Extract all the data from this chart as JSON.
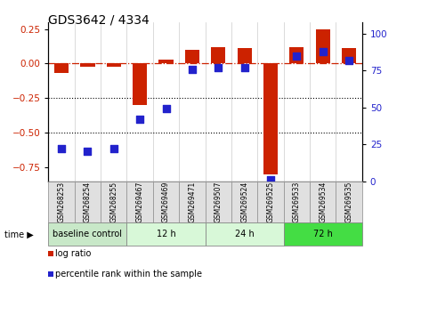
{
  "title": "GDS3642 / 4334",
  "samples": [
    "GSM268253",
    "GSM268254",
    "GSM268255",
    "GSM269467",
    "GSM269469",
    "GSM269471",
    "GSM269507",
    "GSM269524",
    "GSM269525",
    "GSM269533",
    "GSM269534",
    "GSM269535"
  ],
  "log_ratio": [
    -0.07,
    -0.02,
    -0.02,
    -0.3,
    0.03,
    0.1,
    0.12,
    0.11,
    -0.8,
    0.12,
    0.25,
    0.11
  ],
  "percentile_rank": [
    22,
    20,
    22,
    42,
    49,
    76,
    77,
    77,
    1,
    85,
    88,
    82
  ],
  "groups": [
    {
      "label": "baseline control",
      "start": 0,
      "end": 3
    },
    {
      "label": "12 h",
      "start": 3,
      "end": 6
    },
    {
      "label": "24 h",
      "start": 6,
      "end": 9
    },
    {
      "label": "72 h",
      "start": 9,
      "end": 12
    }
  ],
  "group_colors": [
    "#c8e8c8",
    "#d8f8d8",
    "#d8f8d8",
    "#44dd44"
  ],
  "ylim_left": [
    -0.85,
    0.3
  ],
  "ylim_right": [
    0,
    108
  ],
  "left_yticks": [
    -0.75,
    -0.5,
    -0.25,
    0.0,
    0.25
  ],
  "right_yticks": [
    0,
    25,
    50,
    75,
    100
  ],
  "bar_color": "#cc2200",
  "dot_color": "#2222cc",
  "dotted_lines": [
    -0.25,
    -0.5
  ],
  "bar_width": 0.55,
  "dot_size": 28
}
